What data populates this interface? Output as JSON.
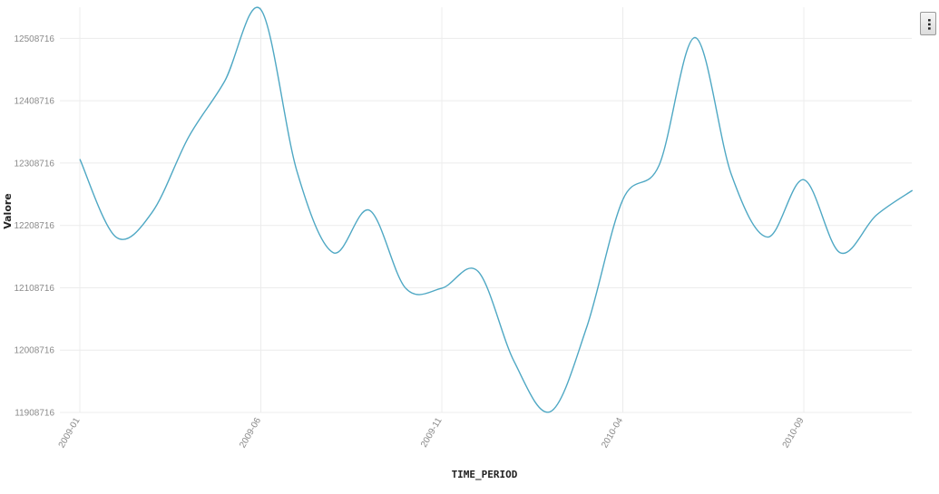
{
  "menu": {
    "icon": "more-vertical-icon",
    "glyph": "⋯"
  },
  "colors": {
    "line": "#4fa8c4",
    "grid": "#ececec",
    "tick_text": "#8a8a8a",
    "axis_title": "#222222"
  },
  "chart_data": {
    "type": "line",
    "xlabel": "TIME_PERIOD",
    "ylabel": "Valore",
    "ylim": [
      11908716,
      12558716
    ],
    "y_ticks": [
      11908716,
      12008716,
      12108716,
      12208716,
      12308716,
      12408716,
      12508716
    ],
    "x_ticks": [
      "2009-01",
      "2009-06",
      "2009-11",
      "2010-04",
      "2010-09"
    ],
    "grid": true,
    "legend": "none",
    "x": [
      "2009-01",
      "2009-02",
      "2009-03",
      "2009-04",
      "2009-05",
      "2009-06",
      "2009-07",
      "2009-08",
      "2009-09",
      "2009-10",
      "2009-11",
      "2009-12",
      "2010-01",
      "2010-02",
      "2010-03",
      "2010-04",
      "2010-05",
      "2010-06",
      "2010-07",
      "2010-08",
      "2010-09",
      "2010-10",
      "2010-11",
      "2010-12"
    ],
    "series": [
      {
        "values": [
          12315000,
          12190000,
          12230000,
          12350000,
          12440000,
          12555000,
          12295000,
          12165000,
          12233000,
          12108000,
          12108000,
          12135000,
          11990000,
          11910000,
          12045000,
          12250000,
          12305000,
          12510000,
          12290000,
          12190000,
          12282000,
          12165000,
          12225000,
          12265000
        ]
      }
    ]
  }
}
